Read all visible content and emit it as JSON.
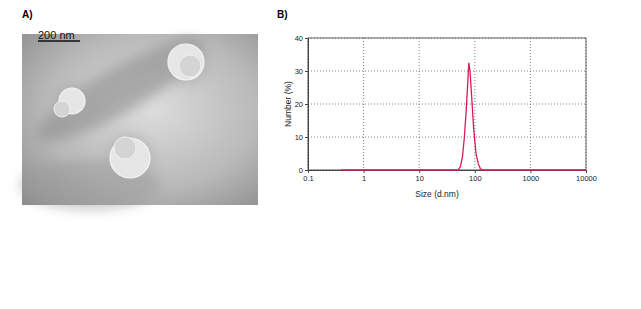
{
  "panels": {
    "a": {
      "label": "A)",
      "scale_bar": "200 nm"
    },
    "b": {
      "label": "B)"
    }
  },
  "chart_data": {
    "type": "line",
    "x_label": "Size (d.nm)",
    "y_label": "Number (%)",
    "x": [
      0.4,
      1,
      10,
      40,
      50,
      55,
      60,
      65,
      70,
      75,
      78,
      82,
      88,
      95,
      105,
      115,
      125,
      135,
      200,
      1000,
      10000
    ],
    "values": [
      0,
      0,
      0,
      0,
      0,
      1,
      4,
      10,
      18,
      27,
      32.5,
      30,
      22,
      13,
      5,
      2,
      0.5,
      0,
      0,
      0,
      0
    ],
    "color": "#d81b5a",
    "log": "x",
    "xlim": [
      0.1,
      10000
    ],
    "xticks": [
      0.1,
      1,
      10,
      100,
      1000,
      10000
    ],
    "ylim": [
      0,
      40
    ],
    "yticks": [
      0,
      10,
      20,
      30,
      40
    ],
    "grid": true
  }
}
